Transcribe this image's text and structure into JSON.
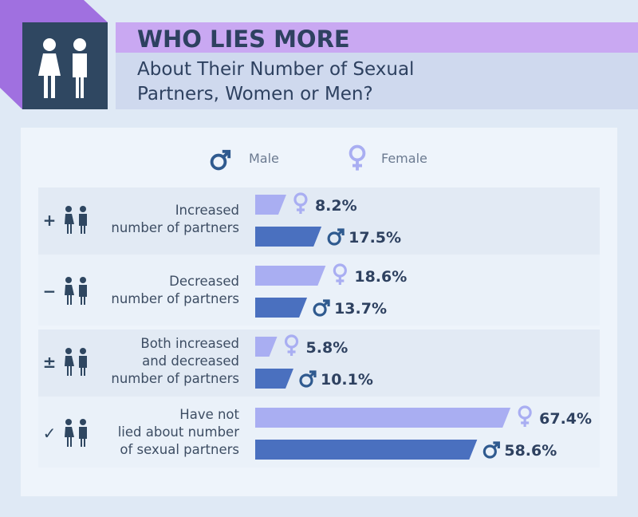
{
  "chart_data": {
    "type": "bar",
    "title": "WHO LIES MORE",
    "subtitle": "About Their Number of Sexual\nPartners, Women or Men?",
    "categories": [
      "Increased\nnumber of partners",
      "Decreased\nnumber of partners",
      "Both increased\nand decreased\nnumber of partners",
      "Have not\nlied about number\nof sexual partners"
    ],
    "category_symbols": [
      "+",
      "−",
      "±",
      "✓"
    ],
    "series": [
      {
        "name": "Female",
        "color": "#a9aef2",
        "values": [
          8.2,
          18.6,
          5.8,
          67.4
        ],
        "value_labels": [
          "8.2%",
          "18.6%",
          "5.8%",
          "67.4%"
        ]
      },
      {
        "name": "Male",
        "color": "#4a70bf",
        "values": [
          17.5,
          13.7,
          10.1,
          58.6
        ],
        "value_labels": [
          "17.5%",
          "13.7%",
          "10.1%",
          "58.6%"
        ]
      }
    ],
    "legend_order": [
      "Male",
      "Female"
    ]
  }
}
